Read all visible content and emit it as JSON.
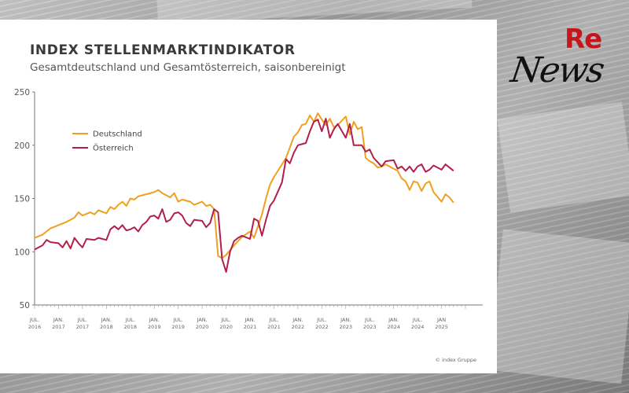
{
  "header": {
    "title": "INDEX STELLENMARKTINDIKATOR",
    "subtitle": "Gesamtdeutschland und Gesamtösterreich, saisonbereinigt"
  },
  "source": "© index Gruppe",
  "logo": {
    "re": "Re",
    "news": "News"
  },
  "colors": {
    "deutschland": "#f0a020",
    "oesterreich": "#b0204a"
  },
  "chart_data": {
    "type": "line",
    "title": "INDEX STELLENMARKTINDIKATOR",
    "subtitle": "Gesamtdeutschland und Gesamtösterreich, saisonbereinigt",
    "xlabel": "",
    "ylabel": "",
    "xlim": [
      "2016-07",
      "2025-07"
    ],
    "ylim": [
      50,
      250
    ],
    "yticks": [
      50,
      100,
      150,
      200,
      250
    ],
    "xticks": [
      {
        "date": "2016-07",
        "line1": "JUL.",
        "line2": "2016"
      },
      {
        "date": "2017-01",
        "line1": "JAN.",
        "line2": "2017"
      },
      {
        "date": "2017-07",
        "line1": "JUL.",
        "line2": "2017"
      },
      {
        "date": "2018-01",
        "line1": "JAN.",
        "line2": "2018"
      },
      {
        "date": "2018-07",
        "line1": "JUL.",
        "line2": "2018"
      },
      {
        "date": "2019-01",
        "line1": "JAN.",
        "line2": "2019"
      },
      {
        "date": "2019-07",
        "line1": "JUL.",
        "line2": "2019"
      },
      {
        "date": "2020-01",
        "line1": "JAN.",
        "line2": "2020"
      },
      {
        "date": "2020-07",
        "line1": "JUL.",
        "line2": "2020"
      },
      {
        "date": "2021-01",
        "line1": "JAN.",
        "line2": "2021"
      },
      {
        "date": "2021-07",
        "line1": "JUL.",
        "line2": "2021"
      },
      {
        "date": "2022-01",
        "line1": "JAN.",
        "line2": "2022"
      },
      {
        "date": "2022-07",
        "line1": "JUL.",
        "line2": "2022"
      },
      {
        "date": "2023-01",
        "line1": "JAN.",
        "line2": "2023"
      },
      {
        "date": "2023-07",
        "line1": "JUL.",
        "line2": "2023"
      },
      {
        "date": "2024-01",
        "line1": "JAN.",
        "line2": "2024"
      },
      {
        "date": "2024-07",
        "line1": "JUL.",
        "line2": "2024"
      },
      {
        "date": "2025-01",
        "line1": "JAN",
        "line2": "2025"
      }
    ],
    "grid": false,
    "legend": "upper-left",
    "series": [
      {
        "name": "Deutschland",
        "color": "#f0a020",
        "points": [
          [
            "2016-07",
            113
          ],
          [
            "2016-09",
            116
          ],
          [
            "2016-10",
            119
          ],
          [
            "2016-11",
            122
          ],
          [
            "2017-01",
            125
          ],
          [
            "2017-03",
            128
          ],
          [
            "2017-05",
            132
          ],
          [
            "2017-06",
            137
          ],
          [
            "2017-07",
            134
          ],
          [
            "2017-09",
            137
          ],
          [
            "2017-10",
            135
          ],
          [
            "2017-11",
            139
          ],
          [
            "2018-01",
            136
          ],
          [
            "2018-02",
            142
          ],
          [
            "2018-03",
            140
          ],
          [
            "2018-04",
            144
          ],
          [
            "2018-05",
            147
          ],
          [
            "2018-06",
            143
          ],
          [
            "2018-07",
            150
          ],
          [
            "2018-08",
            149
          ],
          [
            "2018-09",
            152
          ],
          [
            "2018-11",
            154
          ],
          [
            "2019-01",
            156
          ],
          [
            "2019-02",
            158
          ],
          [
            "2019-03",
            155
          ],
          [
            "2019-05",
            151
          ],
          [
            "2019-06",
            155
          ],
          [
            "2019-07",
            147
          ],
          [
            "2019-08",
            149
          ],
          [
            "2019-10",
            147
          ],
          [
            "2019-11",
            144
          ],
          [
            "2020-01",
            147
          ],
          [
            "2020-02",
            143
          ],
          [
            "2020-03",
            144
          ],
          [
            "2020-04",
            140
          ],
          [
            "2020-05",
            96
          ],
          [
            "2020-06",
            94
          ],
          [
            "2020-07",
            97
          ],
          [
            "2020-09",
            106
          ],
          [
            "2020-10",
            110
          ],
          [
            "2020-11",
            114
          ],
          [
            "2021-01",
            119
          ],
          [
            "2021-02",
            113
          ],
          [
            "2021-04",
            135
          ],
          [
            "2021-05",
            150
          ],
          [
            "2021-06",
            163
          ],
          [
            "2021-07",
            170
          ],
          [
            "2021-09",
            182
          ],
          [
            "2021-10",
            188
          ],
          [
            "2021-11",
            198
          ],
          [
            "2021-12",
            208
          ],
          [
            "2022-01",
            212
          ],
          [
            "2022-02",
            219
          ],
          [
            "2022-03",
            220
          ],
          [
            "2022-04",
            228
          ],
          [
            "2022-05",
            222
          ],
          [
            "2022-06",
            230
          ],
          [
            "2022-07",
            224
          ],
          [
            "2022-08",
            219
          ],
          [
            "2022-09",
            225
          ],
          [
            "2022-10",
            217
          ],
          [
            "2022-11",
            219
          ],
          [
            "2023-01",
            227
          ],
          [
            "2023-02",
            210
          ],
          [
            "2023-03",
            222
          ],
          [
            "2023-04",
            215
          ],
          [
            "2023-05",
            217
          ],
          [
            "2023-06",
            188
          ],
          [
            "2023-07",
            185
          ],
          [
            "2023-08",
            183
          ],
          [
            "2023-09",
            179
          ],
          [
            "2023-10",
            180
          ],
          [
            "2023-11",
            182
          ],
          [
            "2024-01",
            178
          ],
          [
            "2024-02",
            176
          ],
          [
            "2024-03",
            169
          ],
          [
            "2024-04",
            166
          ],
          [
            "2024-05",
            158
          ],
          [
            "2024-06",
            166
          ],
          [
            "2024-07",
            165
          ],
          [
            "2024-08",
            157
          ],
          [
            "2024-09",
            164
          ],
          [
            "2024-10",
            166
          ],
          [
            "2024-11",
            156
          ],
          [
            "2025-01",
            147
          ],
          [
            "2025-02",
            154
          ],
          [
            "2025-03",
            151
          ],
          [
            "2025-04",
            146
          ]
        ]
      },
      {
        "name": "Österreich",
        "color": "#b0204a",
        "points": [
          [
            "2016-07",
            102
          ],
          [
            "2016-09",
            106
          ],
          [
            "2016-10",
            111
          ],
          [
            "2016-11",
            109
          ],
          [
            "2017-01",
            108
          ],
          [
            "2017-02",
            104
          ],
          [
            "2017-03",
            110
          ],
          [
            "2017-04",
            103
          ],
          [
            "2017-05",
            113
          ],
          [
            "2017-06",
            108
          ],
          [
            "2017-07",
            104
          ],
          [
            "2017-08",
            112
          ],
          [
            "2017-10",
            111
          ],
          [
            "2017-11",
            113
          ],
          [
            "2018-01",
            111
          ],
          [
            "2018-02",
            121
          ],
          [
            "2018-03",
            124
          ],
          [
            "2018-04",
            121
          ],
          [
            "2018-05",
            125
          ],
          [
            "2018-06",
            120
          ],
          [
            "2018-07",
            121
          ],
          [
            "2018-08",
            123
          ],
          [
            "2018-09",
            119
          ],
          [
            "2018-10",
            125
          ],
          [
            "2018-11",
            128
          ],
          [
            "2018-12",
            133
          ],
          [
            "2019-01",
            134
          ],
          [
            "2019-02",
            131
          ],
          [
            "2019-03",
            140
          ],
          [
            "2019-04",
            128
          ],
          [
            "2019-05",
            130
          ],
          [
            "2019-06",
            136
          ],
          [
            "2019-07",
            137
          ],
          [
            "2019-08",
            134
          ],
          [
            "2019-09",
            127
          ],
          [
            "2019-10",
            124
          ],
          [
            "2019-11",
            130
          ],
          [
            "2020-01",
            129
          ],
          [
            "2020-02",
            123
          ],
          [
            "2020-03",
            127
          ],
          [
            "2020-04",
            140
          ],
          [
            "2020-05",
            137
          ],
          [
            "2020-06",
            93
          ],
          [
            "2020-07",
            81
          ],
          [
            "2020-08",
            100
          ],
          [
            "2020-09",
            110
          ],
          [
            "2020-10",
            113
          ],
          [
            "2020-11",
            115
          ],
          [
            "2021-01",
            112
          ],
          [
            "2021-02",
            131
          ],
          [
            "2021-03",
            129
          ],
          [
            "2021-04",
            115
          ],
          [
            "2021-05",
            130
          ],
          [
            "2021-06",
            143
          ],
          [
            "2021-07",
            148
          ],
          [
            "2021-09",
            165
          ],
          [
            "2021-10",
            187
          ],
          [
            "2021-11",
            183
          ],
          [
            "2021-12",
            193
          ],
          [
            "2022-01",
            200
          ],
          [
            "2022-03",
            202
          ],
          [
            "2022-04",
            213
          ],
          [
            "2022-05",
            222
          ],
          [
            "2022-06",
            224
          ],
          [
            "2022-07",
            213
          ],
          [
            "2022-08",
            225
          ],
          [
            "2022-09",
            207
          ],
          [
            "2022-10",
            215
          ],
          [
            "2022-11",
            220
          ],
          [
            "2023-01",
            207
          ],
          [
            "2023-02",
            220
          ],
          [
            "2023-03",
            200
          ],
          [
            "2023-04",
            200
          ],
          [
            "2023-05",
            200
          ],
          [
            "2023-06",
            194
          ],
          [
            "2023-07",
            196
          ],
          [
            "2023-08",
            188
          ],
          [
            "2023-09",
            184
          ],
          [
            "2023-10",
            180
          ],
          [
            "2023-11",
            185
          ],
          [
            "2024-01",
            186
          ],
          [
            "2024-02",
            178
          ],
          [
            "2024-03",
            180
          ],
          [
            "2024-04",
            176
          ],
          [
            "2024-05",
            180
          ],
          [
            "2024-06",
            175
          ],
          [
            "2024-07",
            180
          ],
          [
            "2024-08",
            182
          ],
          [
            "2024-09",
            175
          ],
          [
            "2024-10",
            177
          ],
          [
            "2024-11",
            181
          ],
          [
            "2025-01",
            177
          ],
          [
            "2025-02",
            182
          ],
          [
            "2025-03",
            179
          ],
          [
            "2025-04",
            176
          ]
        ]
      }
    ]
  }
}
